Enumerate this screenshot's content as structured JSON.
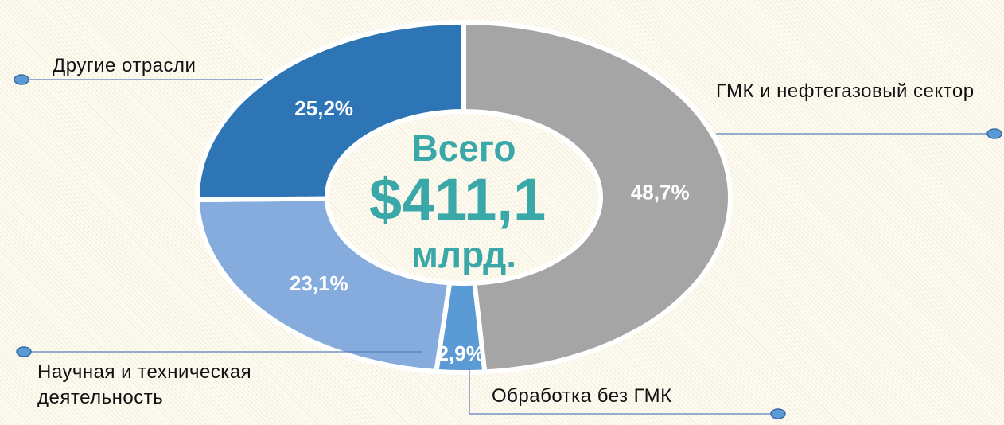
{
  "chart_data": {
    "type": "donut",
    "categories": [
      "ГМК и нефтегазовый сектор",
      "Обработка без ГМК",
      "Научная и техническая деятельность",
      "Другие отрасли"
    ],
    "values": [
      48.7,
      2.9,
      23.1,
      25.2
    ],
    "value_labels": [
      "48,7%",
      "2,9%",
      "23,1%",
      "25,2%"
    ],
    "colors": [
      "#a5a5a5",
      "#5b9bd5",
      "#85acdc",
      "#2e75b6"
    ],
    "center_text": [
      "Всего",
      "$411,1",
      "млрд."
    ]
  }
}
